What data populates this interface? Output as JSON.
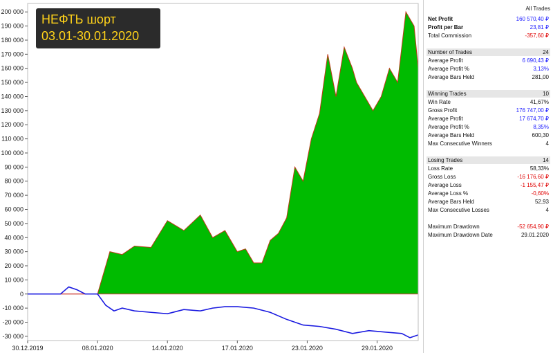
{
  "title": {
    "line1": "НЕФТЬ шорт",
    "line2": "03.01-30.01.2020"
  },
  "chart_data": {
    "type": "area",
    "y_ticks": [
      200000,
      190000,
      180000,
      170000,
      160000,
      150000,
      140000,
      130000,
      120000,
      110000,
      100000,
      90000,
      80000,
      70000,
      60000,
      50000,
      40000,
      30000,
      20000,
      10000,
      0,
      -10000,
      -20000,
      -30000
    ],
    "y_tick_labels": [
      "200 000",
      "190 000",
      "180 000",
      "170 000",
      "160 000",
      "150 000",
      "140 000",
      "130 000",
      "120 000",
      "110 000",
      "100 000",
      "90 000",
      "80 000",
      "70 000",
      "60 000",
      "50 000",
      "40 000",
      "30 000",
      "20 000",
      "10 000",
      "0",
      "-10 000",
      "-20 000",
      "-30 000"
    ],
    "ylim": [
      -33000,
      206000
    ],
    "x_tick_labels": [
      "30.12.2019",
      "08.01.2020",
      "14.01.2020",
      "17.01.2020",
      "23.01.2020",
      "29.01.2020"
    ],
    "x_tick_pos": [
      0,
      17,
      34,
      51,
      68,
      85
    ],
    "xlim": [
      0,
      95
    ],
    "series": [
      {
        "kind": "equity",
        "color": "#00bb00",
        "x": [
          0,
          17,
          20,
          23,
          26,
          30,
          34,
          38,
          42,
          45,
          48,
          51,
          53,
          55,
          57,
          59,
          61,
          63,
          65,
          67,
          69,
          71,
          73,
          75,
          77,
          79,
          80,
          82,
          84,
          86,
          88,
          90,
          92,
          94,
          95
        ],
        "values": [
          0,
          0,
          30000,
          28000,
          34000,
          33000,
          52000,
          45000,
          56000,
          40000,
          45000,
          30000,
          32000,
          22000,
          22000,
          38000,
          43000,
          54000,
          90000,
          80000,
          110000,
          128000,
          170000,
          140000,
          175000,
          160000,
          150000,
          140000,
          130000,
          140000,
          160000,
          150000,
          200000,
          190000,
          160000
        ]
      },
      {
        "kind": "buy-and-hold",
        "color": "#1a1ae0",
        "x": [
          0,
          4,
          8,
          10,
          12,
          14,
          17,
          19,
          21,
          23,
          26,
          30,
          34,
          38,
          42,
          45,
          48,
          51,
          55,
          59,
          63,
          67,
          71,
          75,
          79,
          83,
          87,
          91,
          93,
          95
        ],
        "values": [
          0,
          0,
          0,
          5000,
          3000,
          0,
          0,
          -8000,
          -12000,
          -10000,
          -12000,
          -13000,
          -14000,
          -11000,
          -12000,
          -10000,
          -9000,
          -9000,
          -10000,
          -13000,
          -18000,
          -22000,
          -23000,
          -25000,
          -28000,
          -26000,
          -27000,
          -28000,
          -31000,
          -29000
        ]
      }
    ]
  },
  "stats": {
    "column_header": "All Trades",
    "rows": [
      {
        "label": "Net Profit",
        "value": "160 570,40 ₽",
        "style": "bold",
        "color": "blue"
      },
      {
        "label": "Profit per Bar",
        "value": "23,81 ₽",
        "style": "bold",
        "color": "blue"
      },
      {
        "label": "Total Commission",
        "value": "-357,60 ₽",
        "style": "",
        "color": "red"
      },
      {
        "label": "",
        "value": "",
        "style": "gap",
        "color": ""
      },
      {
        "label": "Number of Trades",
        "value": "24",
        "style": "section",
        "color": ""
      },
      {
        "label": "Average Profit",
        "value": "6 690,43 ₽",
        "style": "",
        "color": "blue"
      },
      {
        "label": "Average Profit %",
        "value": "3,13%",
        "style": "",
        "color": "blue"
      },
      {
        "label": "Average Bars Held",
        "value": "281,00",
        "style": "",
        "color": ""
      },
      {
        "label": "",
        "value": "",
        "style": "gap",
        "color": ""
      },
      {
        "label": "Winning Trades",
        "value": "10",
        "style": "section",
        "color": ""
      },
      {
        "label": "Win Rate",
        "value": "41,67%",
        "style": "",
        "color": ""
      },
      {
        "label": "Gross Profit",
        "value": "176 747,00 ₽",
        "style": "",
        "color": "blue"
      },
      {
        "label": "Average Profit",
        "value": "17 674,70 ₽",
        "style": "",
        "color": "blue"
      },
      {
        "label": "Average Profit %",
        "value": "8,35%",
        "style": "",
        "color": "blue"
      },
      {
        "label": "Average Bars Held",
        "value": "600,30",
        "style": "",
        "color": ""
      },
      {
        "label": "Max Consecutive Winners",
        "value": "4",
        "style": "",
        "color": ""
      },
      {
        "label": "",
        "value": "",
        "style": "gap",
        "color": ""
      },
      {
        "label": "Losing Trades",
        "value": "14",
        "style": "section",
        "color": ""
      },
      {
        "label": "Loss Rate",
        "value": "58,33%",
        "style": "",
        "color": ""
      },
      {
        "label": "Gross Loss",
        "value": "-16 176,60 ₽",
        "style": "",
        "color": "red"
      },
      {
        "label": "Average Loss",
        "value": "-1 155,47 ₽",
        "style": "",
        "color": "red"
      },
      {
        "label": "Average Loss %",
        "value": "-0,60%",
        "style": "",
        "color": "red"
      },
      {
        "label": "Average Bars Held",
        "value": "52,93",
        "style": "",
        "color": ""
      },
      {
        "label": "Max Consecutive Losses",
        "value": "4",
        "style": "",
        "color": ""
      },
      {
        "label": "",
        "value": "",
        "style": "gap",
        "color": ""
      },
      {
        "label": "Maximum Drawdown",
        "value": "-52 654,90 ₽",
        "style": "",
        "color": "red"
      },
      {
        "label": "Maximum Drawdown Date",
        "value": "29.01.2020",
        "style": "",
        "color": ""
      }
    ]
  }
}
